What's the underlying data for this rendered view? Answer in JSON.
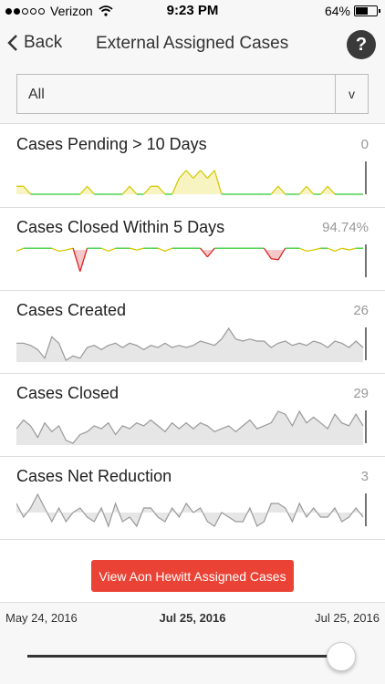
{
  "status": {
    "carrier": "Verizon",
    "time": "9:23 PM",
    "battery": "64%",
    "battery_level": 0.64
  },
  "nav": {
    "back_label": "Back",
    "title": "External Assigned Cases",
    "help_label": "?"
  },
  "filter": {
    "value": "All",
    "arrow": "v"
  },
  "metrics": [
    {
      "title": "Cases Pending > 10 Days",
      "value": "0"
    },
    {
      "title": "Cases Closed Within 5 Days",
      "value": "94.74%"
    },
    {
      "title": "Cases Created",
      "value": "26"
    },
    {
      "title": "Cases Closed",
      "value": "29"
    },
    {
      "title": "Cases Net Reduction",
      "value": "3"
    }
  ],
  "cta_label": "View Aon Hewitt Assigned Cases",
  "slider": {
    "start_date": "May 24, 2016",
    "current_date": "Jul 25, 2016",
    "end_date": "Jul 25, 2016",
    "position": 1.0
  },
  "colors": {
    "accent_red": "#ea4335",
    "pending_line": "#d4c800",
    "pending_fill": "#f7f4c2",
    "good_green": "#33cc33",
    "bad_red": "#dd2222",
    "bad_fill": "#f5c7c7",
    "gray_line": "#999999",
    "gray_fill": "#e6e6e6"
  },
  "chart_data": [
    {
      "type": "area",
      "name": "Cases Pending > 10 Days",
      "values": [
        1,
        1,
        0,
        0,
        0,
        0,
        0,
        0,
        0,
        0,
        1,
        0,
        0,
        0,
        0,
        0,
        1,
        0,
        0,
        1,
        1,
        0,
        0,
        2,
        3,
        2,
        3,
        2,
        3,
        0,
        0,
        0,
        0,
        0,
        0,
        0,
        0,
        1,
        0,
        0,
        0,
        1,
        0,
        0,
        1,
        0,
        0,
        0,
        0,
        0
      ]
    },
    {
      "type": "line",
      "name": "Cases Closed Within 5 Days",
      "values": [
        95,
        100,
        100,
        100,
        100,
        100,
        95,
        97,
        100,
        60,
        100,
        100,
        100,
        95,
        100,
        100,
        100,
        97,
        100,
        100,
        100,
        95,
        100,
        100,
        100,
        100,
        100,
        85,
        100,
        100,
        100,
        100,
        100,
        100,
        100,
        100,
        82,
        80,
        100,
        100,
        100,
        95,
        97,
        100,
        100,
        95,
        100,
        97,
        100,
        100
      ]
    },
    {
      "type": "area",
      "name": "Cases Created",
      "values": [
        8,
        8,
        7,
        5,
        1,
        11,
        8,
        0,
        2,
        1,
        6,
        7,
        5,
        7,
        8,
        6,
        8,
        7,
        5,
        7,
        6,
        8,
        6,
        7,
        6,
        7,
        9,
        8,
        7,
        10,
        15,
        10,
        9,
        10,
        9,
        9,
        6,
        8,
        9,
        7,
        8,
        7,
        9,
        8,
        6,
        9,
        8,
        6,
        9,
        6
      ]
    },
    {
      "type": "area",
      "name": "Cases Closed",
      "values": [
        7,
        10,
        8,
        4,
        9,
        6,
        8,
        3,
        2,
        5,
        6,
        8,
        7,
        9,
        5,
        8,
        7,
        9,
        8,
        10,
        8,
        6,
        9,
        7,
        9,
        7,
        9,
        8,
        6,
        7,
        8,
        6,
        8,
        10,
        7,
        8,
        9,
        13,
        12,
        8,
        13,
        9,
        11,
        9,
        7,
        12,
        9,
        8,
        12,
        8
      ]
    },
    {
      "type": "area",
      "name": "Cases Net Reduction",
      "values": [
        2,
        -1,
        1,
        4,
        1,
        -2,
        1,
        -2,
        0,
        1,
        -1,
        -2,
        1,
        -3,
        2,
        -2,
        -1,
        -3,
        1,
        1,
        -1,
        -2,
        1,
        -1,
        2,
        0,
        1,
        -2,
        -3,
        0,
        -1,
        -2,
        -2,
        1,
        -3,
        -2,
        2,
        2,
        1,
        -2,
        2,
        -1,
        1,
        -1,
        -1,
        1,
        -2,
        -1,
        1,
        -1
      ]
    }
  ]
}
